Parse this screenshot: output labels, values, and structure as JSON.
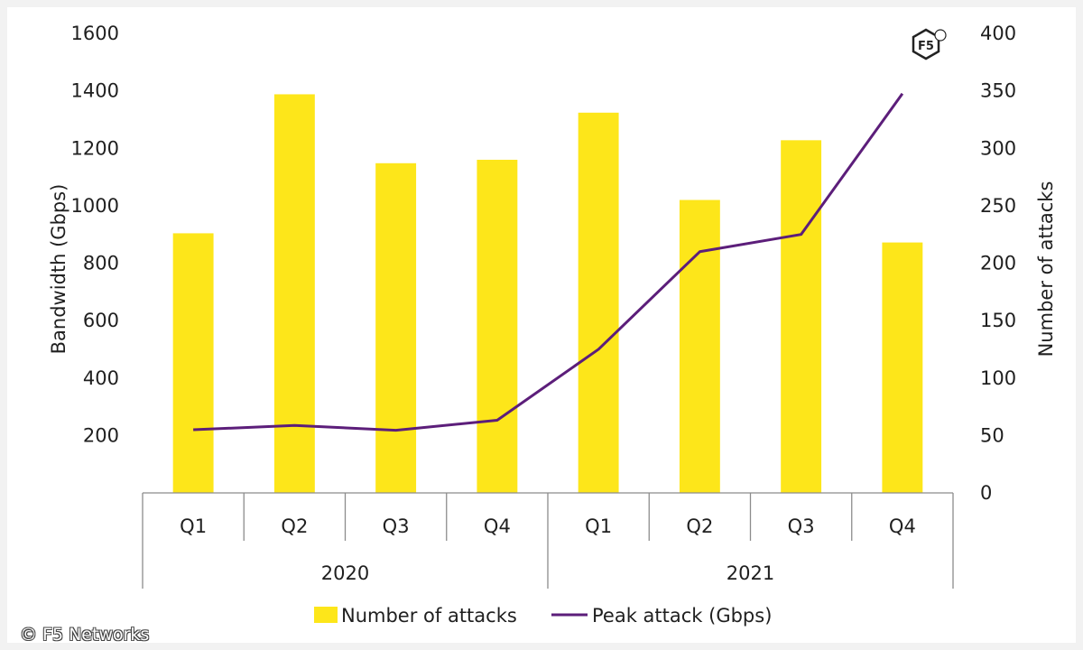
{
  "chart_data": {
    "type": "bar",
    "groups": [
      {
        "label": "2020",
        "categories": [
          "Q1",
          "Q2",
          "Q3",
          "Q4"
        ]
      },
      {
        "label": "2021",
        "categories": [
          "Q1",
          "Q2",
          "Q3",
          "Q4"
        ]
      }
    ],
    "series": [
      {
        "name": "Number of attacks",
        "kind": "bar",
        "axis": "right",
        "color": "#fde61a",
        "values": [
          226,
          347,
          287,
          290,
          331,
          255,
          307,
          218
        ]
      },
      {
        "name": "Peak attack (Gbps)",
        "kind": "line",
        "axis": "left",
        "color": "#5c1e7a",
        "values": [
          220,
          235,
          218,
          253,
          500,
          840,
          900,
          1390
        ]
      }
    ],
    "left_axis": {
      "label": "Bandwidth (Gbps)",
      "ylim": [
        0,
        1600
      ],
      "ticks": [
        "200",
        "400",
        "600",
        "800",
        "1000",
        "1200",
        "1400",
        "1600"
      ]
    },
    "right_axis": {
      "label": "Number of attacks",
      "ylim": [
        0,
        400
      ],
      "ticks": [
        "0",
        "50",
        "100",
        "150",
        "200",
        "250",
        "300",
        "350",
        "400"
      ]
    },
    "grid": false,
    "legend_position": "bottom-center"
  },
  "logo_text": "F5",
  "copyright": "© F5 Networks"
}
